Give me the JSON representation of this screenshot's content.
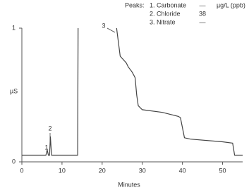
{
  "chart_data": {
    "type": "line",
    "ylabel": "µS",
    "xlabel": "Minutes",
    "x": [
      0,
      6.0,
      6.3,
      6.6,
      6.9,
      7.1,
      7.4,
      13.8,
      13.9,
      14.0,
      18,
      23.6,
      24.5,
      26,
      26.5,
      27.5,
      28.2,
      28.6,
      29,
      30,
      35,
      39,
      39.5,
      40.5,
      42,
      50,
      52.5,
      53,
      55
    ],
    "series": [
      {
        "color": "#444444",
        "values": [
          0.05,
          0.05,
          0.09,
          0.05,
          0.05,
          0.19,
          0.05,
          0.05,
          0.05,
          1.0,
          null,
          1.0,
          0.79,
          0.74,
          0.71,
          0.67,
          0.63,
          0.5,
          0.42,
          0.39,
          0.37,
          0.34,
          0.33,
          0.18,
          0.17,
          0.15,
          0.14,
          0.05,
          0.05
        ]
      }
    ],
    "xlim": [
      0,
      55
    ],
    "ylim": [
      0,
      1
    ],
    "xticks": [
      0,
      10,
      20,
      30,
      40,
      50
    ],
    "yticks": [
      0,
      1
    ],
    "annotations": [
      "1",
      "2",
      "3"
    ],
    "peaks_table": {
      "title": "Peaks:",
      "unit": "µg/L (ppb)",
      "rows": [
        {
          "name": "1. Carbonate",
          "value": "—"
        },
        {
          "name": "2. Chloride",
          "value": 38
        },
        {
          "name": "3. Nitrate",
          "value": "—"
        }
      ]
    }
  }
}
